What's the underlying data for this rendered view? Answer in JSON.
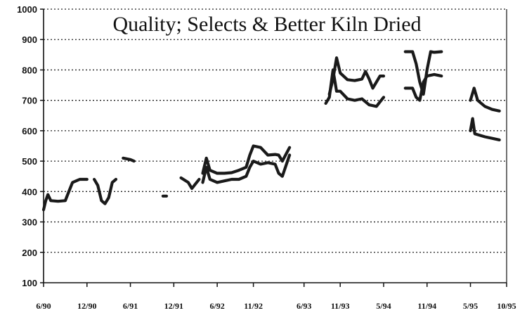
{
  "chart_data": {
    "type": "line",
    "title": "Quality; Selects & Better Kiln Dried",
    "xlabel": "",
    "ylabel": "",
    "ylim": [
      100,
      1000
    ],
    "yticks": [
      100,
      200,
      300,
      400,
      500,
      600,
      700,
      800,
      900,
      1000
    ],
    "xlim": [
      0,
      64
    ],
    "x_unit": "months since 6/90",
    "xtick_labels": [
      "6/90",
      "12/90",
      "6/91",
      "12/91",
      "6/92",
      "11/92",
      "6/93",
      "11/93",
      "5/94",
      "11/94",
      "5/95",
      "10/95"
    ],
    "xtick_positions": [
      0,
      6,
      12,
      18,
      24,
      29,
      36,
      41,
      47,
      53,
      59,
      64
    ],
    "grid": "horizontal-dotted",
    "legend": "none",
    "series": [
      {
        "segments": [
          [
            [
              0,
              340
            ],
            [
              0.3,
              370
            ],
            [
              0.6,
              390
            ],
            [
              1,
              370
            ],
            [
              2,
              368
            ],
            [
              3,
              370
            ],
            [
              3.5,
              400
            ],
            [
              4,
              430
            ],
            [
              5,
              440
            ],
            [
              6,
              440
            ]
          ],
          [
            [
              7,
              440
            ],
            [
              7.5,
              420
            ],
            [
              8,
              370
            ],
            [
              8.5,
              360
            ],
            [
              9,
              380
            ],
            [
              9.5,
              430
            ],
            [
              10,
              440
            ]
          ],
          [
            [
              11,
              510
            ],
            [
              12,
              505
            ],
            [
              12.5,
              500
            ]
          ],
          [
            [
              16.5,
              385
            ],
            [
              17,
              385
            ]
          ],
          [
            [
              19,
              445
            ],
            [
              20,
              430
            ],
            [
              20.5,
              410
            ],
            [
              21,
              425
            ],
            [
              21.5,
              440
            ]
          ],
          [
            [
              22,
              460
            ],
            [
              22.5,
              510
            ],
            [
              23,
              470
            ],
            [
              24,
              460
            ],
            [
              25,
              460
            ],
            [
              26,
              462
            ],
            [
              27,
              470
            ],
            [
              28,
              480
            ],
            [
              28.5,
              520
            ],
            [
              29,
              550
            ],
            [
              30,
              545
            ],
            [
              31,
              520
            ],
            [
              32,
              522
            ],
            [
              32.5,
              520
            ],
            [
              33,
              500
            ],
            [
              34,
              545
            ]
          ],
          [
            [
              39.5,
              720
            ],
            [
              40,
              770
            ],
            [
              40.5,
              840
            ],
            [
              41,
              790
            ],
            [
              42,
              768
            ],
            [
              43,
              765
            ],
            [
              44,
              770
            ],
            [
              44.5,
              795
            ],
            [
              45,
              770
            ],
            [
              45.5,
              740
            ],
            [
              46,
              760
            ],
            [
              46.5,
              780
            ],
            [
              47,
              780
            ]
          ],
          [
            [
              50,
              860
            ],
            [
              51,
              860
            ],
            [
              51.5,
              820
            ],
            [
              52,
              760
            ],
            [
              52.5,
              720
            ],
            [
              53,
              800
            ],
            [
              53.5,
              860
            ],
            [
              54,
              858
            ],
            [
              55,
              860
            ]
          ],
          [
            [
              59,
              700
            ],
            [
              59.5,
              740
            ],
            [
              60,
              700
            ],
            [
              61,
              680
            ],
            [
              62,
              670
            ],
            [
              63,
              665
            ]
          ]
        ]
      },
      {
        "segments": [
          [
            [
              39,
              690
            ],
            [
              39.5,
              710
            ],
            [
              40,
              800
            ],
            [
              40.5,
              730
            ],
            [
              41,
              730
            ],
            [
              42,
              705
            ],
            [
              43,
              700
            ],
            [
              44,
              705
            ],
            [
              45,
              685
            ],
            [
              46,
              680
            ],
            [
              46.5,
              695
            ],
            [
              47,
              710
            ]
          ],
          [
            [
              50,
              740
            ],
            [
              51,
              740
            ],
            [
              51.5,
              710
            ],
            [
              52,
              700
            ],
            [
              52.5,
              760
            ],
            [
              53,
              780
            ],
            [
              54,
              785
            ],
            [
              55,
              780
            ]
          ],
          [
            [
              59,
              600
            ],
            [
              59.3,
              640
            ],
            [
              59.6,
              590
            ],
            [
              61,
              580
            ],
            [
              62,
              575
            ],
            [
              63,
              570
            ]
          ],
          [
            [
              22,
              430
            ],
            [
              22.5,
              480
            ],
            [
              23,
              440
            ],
            [
              24,
              430
            ],
            [
              25,
              435
            ],
            [
              26,
              440
            ],
            [
              27,
              440
            ],
            [
              28,
              450
            ],
            [
              28.5,
              480
            ],
            [
              29,
              500
            ],
            [
              30,
              490
            ],
            [
              31,
              495
            ],
            [
              32,
              490
            ],
            [
              32.5,
              460
            ],
            [
              33,
              450
            ],
            [
              34,
              520
            ]
          ]
        ]
      }
    ]
  }
}
